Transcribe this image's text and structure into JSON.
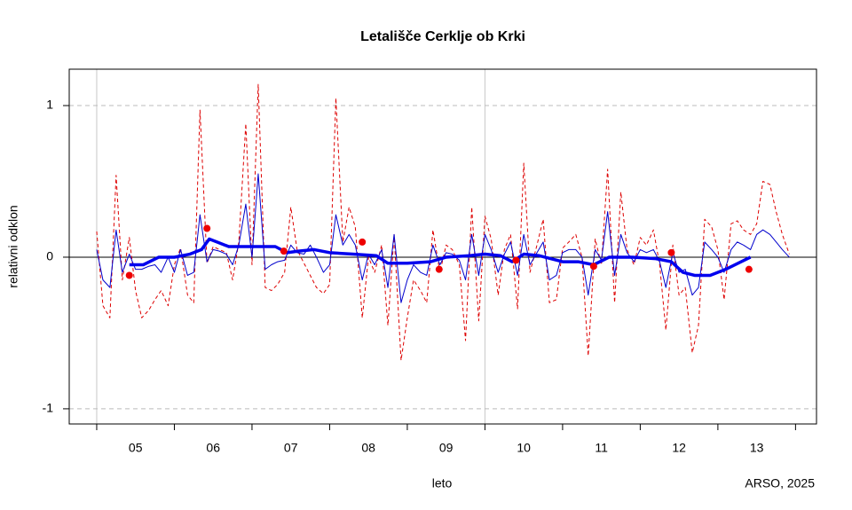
{
  "chart_data": {
    "type": "line",
    "title": "Letališče Cerklje ob Krki",
    "ylabel": "relativni odklon",
    "xlabel": "leto",
    "caption": "ARSO, 2025",
    "xlim": [
      4.646,
      14.27
    ],
    "ylim": [
      -1.1,
      1.24
    ],
    "yticks": [
      -1,
      0,
      1
    ],
    "ygrid": [
      -1,
      1
    ],
    "hline": 0,
    "vlines": [
      5,
      10
    ],
    "xtick_marks": [
      5,
      6,
      7,
      8,
      9,
      10,
      11,
      12,
      13,
      14
    ],
    "xticks": [
      {
        "value": 5.5,
        "label": "05"
      },
      {
        "value": 6.5,
        "label": "06"
      },
      {
        "value": 7.5,
        "label": "07"
      },
      {
        "value": 8.5,
        "label": "08"
      },
      {
        "value": 9.5,
        "label": "09"
      },
      {
        "value": 10.5,
        "label": "10"
      },
      {
        "value": 11.5,
        "label": "11"
      },
      {
        "value": 12.5,
        "label": "12"
      },
      {
        "value": 13.5,
        "label": "13"
      }
    ],
    "x": [
      5.0,
      5.08,
      5.17,
      5.25,
      5.33,
      5.42,
      5.5,
      5.58,
      5.67,
      5.75,
      5.83,
      5.92,
      6.0,
      6.08,
      6.17,
      6.25,
      6.33,
      6.42,
      6.5,
      6.58,
      6.67,
      6.75,
      6.83,
      6.92,
      7.0,
      7.08,
      7.17,
      7.25,
      7.33,
      7.42,
      7.5,
      7.58,
      7.67,
      7.75,
      7.83,
      7.92,
      8.0,
      8.08,
      8.17,
      8.25,
      8.33,
      8.42,
      8.5,
      8.58,
      8.67,
      8.75,
      8.83,
      8.92,
      9.0,
      9.08,
      9.17,
      9.25,
      9.33,
      9.42,
      9.5,
      9.58,
      9.67,
      9.75,
      9.83,
      9.92,
      10.0,
      10.08,
      10.17,
      10.25,
      10.33,
      10.42,
      10.5,
      10.58,
      10.67,
      10.75,
      10.83,
      10.92,
      11.0,
      11.08,
      11.17,
      11.25,
      11.33,
      11.42,
      11.5,
      11.58,
      11.67,
      11.75,
      11.83,
      11.92,
      12.0,
      12.08,
      12.17,
      12.25,
      12.33,
      12.42,
      12.5,
      12.58,
      12.67,
      12.75,
      12.83,
      12.92,
      13.0,
      13.08,
      13.17,
      13.25,
      13.33,
      13.42,
      13.5,
      13.58,
      13.67,
      13.75,
      13.83,
      13.92
    ],
    "series": [
      {
        "color": "#dd0000",
        "style": "dashed",
        "width": 1,
        "values": [
          0.17,
          -0.32,
          -0.4,
          0.54,
          -0.15,
          0.13,
          -0.22,
          -0.4,
          -0.35,
          -0.28,
          -0.22,
          -0.32,
          -0.05,
          0.06,
          -0.25,
          -0.3,
          0.97,
          -0.04,
          0.07,
          0.05,
          0.03,
          -0.15,
          0.1,
          0.88,
          -0.05,
          1.14,
          -0.2,
          -0.22,
          -0.18,
          -0.1,
          0.33,
          0.05,
          -0.04,
          -0.12,
          -0.2,
          -0.24,
          -0.18,
          1.05,
          0.1,
          0.33,
          0.2,
          -0.4,
          0.0,
          -0.1,
          0.08,
          -0.45,
          0.15,
          -0.68,
          -0.4,
          -0.15,
          -0.22,
          -0.3,
          0.18,
          -0.1,
          0.08,
          0.05,
          -0.05,
          -0.55,
          0.33,
          -0.42,
          0.27,
          0.12,
          -0.25,
          0.05,
          0.15,
          -0.34,
          0.62,
          -0.1,
          0.08,
          0.25,
          -0.3,
          -0.28,
          0.06,
          0.1,
          0.15,
          0.0,
          -0.65,
          0.12,
          -0.05,
          0.58,
          -0.3,
          0.43,
          0.05,
          -0.05,
          0.13,
          0.08,
          0.18,
          -0.05,
          -0.48,
          0.08,
          -0.25,
          -0.2,
          -0.63,
          -0.45,
          0.25,
          0.2,
          0.05,
          -0.28,
          0.22,
          0.24,
          0.18,
          0.15,
          0.22,
          0.5,
          0.48,
          0.3,
          0.15,
          0.02
        ]
      },
      {
        "color": "#0000cc",
        "style": "solid",
        "width": 1,
        "values": [
          0.05,
          -0.15,
          -0.2,
          0.18,
          -0.1,
          0.02,
          -0.08,
          -0.08,
          -0.06,
          -0.05,
          -0.1,
          0.0,
          -0.1,
          0.05,
          -0.12,
          -0.1,
          0.28,
          -0.03,
          0.05,
          0.04,
          0.02,
          -0.05,
          0.08,
          0.35,
          0.0,
          0.55,
          -0.08,
          -0.05,
          -0.03,
          -0.02,
          0.08,
          0.03,
          0.02,
          0.08,
          0.0,
          -0.1,
          -0.05,
          0.28,
          0.08,
          0.15,
          0.08,
          -0.15,
          0.02,
          -0.05,
          0.05,
          -0.2,
          0.15,
          -0.3,
          -0.15,
          -0.05,
          -0.1,
          -0.12,
          0.08,
          -0.05,
          0.03,
          0.02,
          -0.02,
          -0.15,
          0.15,
          -0.12,
          0.15,
          0.05,
          -0.1,
          0.02,
          0.1,
          -0.12,
          0.15,
          -0.05,
          0.03,
          0.1,
          -0.15,
          -0.12,
          0.03,
          0.05,
          0.05,
          0.0,
          -0.25,
          0.05,
          -0.02,
          0.3,
          -0.12,
          0.15,
          0.03,
          -0.03,
          0.05,
          0.03,
          0.05,
          -0.03,
          -0.2,
          0.03,
          -0.1,
          -0.08,
          -0.25,
          -0.2,
          0.1,
          0.05,
          0.0,
          -0.1,
          0.05,
          0.1,
          0.08,
          0.05,
          0.15,
          0.18,
          0.15,
          0.1,
          0.05,
          0.0
        ]
      },
      {
        "color": "#0000ee",
        "style": "solid",
        "width": 3.5,
        "x": [
          5.42,
          5.6,
          5.8,
          6.0,
          6.2,
          6.35,
          6.45,
          6.55,
          6.7,
          7.0,
          7.3,
          7.45,
          7.6,
          7.8,
          8.0,
          8.3,
          8.6,
          8.75,
          9.0,
          9.3,
          9.5,
          9.8,
          10.0,
          10.2,
          10.35,
          10.5,
          10.7,
          11.0,
          11.2,
          11.4,
          11.6,
          11.9,
          12.2,
          12.4,
          12.55,
          12.7,
          12.9,
          13.1,
          13.3,
          13.42
        ],
        "values": [
          -0.05,
          -0.05,
          0.0,
          0.0,
          0.02,
          0.05,
          0.12,
          0.1,
          0.07,
          0.07,
          0.07,
          0.03,
          0.04,
          0.05,
          0.03,
          0.02,
          0.01,
          -0.04,
          -0.04,
          -0.03,
          0.0,
          0.01,
          0.02,
          0.01,
          -0.03,
          0.02,
          0.01,
          -0.03,
          -0.03,
          -0.05,
          0.0,
          0.0,
          -0.01,
          -0.03,
          -0.1,
          -0.12,
          -0.12,
          -0.08,
          -0.03,
          0.0
        ]
      },
      {
        "color": "#ee0000",
        "style": "points",
        "x": [
          5.42,
          6.42,
          7.41,
          8.42,
          9.41,
          10.4,
          11.4,
          12.4,
          13.4
        ],
        "values": [
          -0.12,
          0.19,
          0.04,
          0.1,
          -0.08,
          -0.02,
          -0.06,
          0.03,
          -0.08
        ]
      }
    ]
  }
}
